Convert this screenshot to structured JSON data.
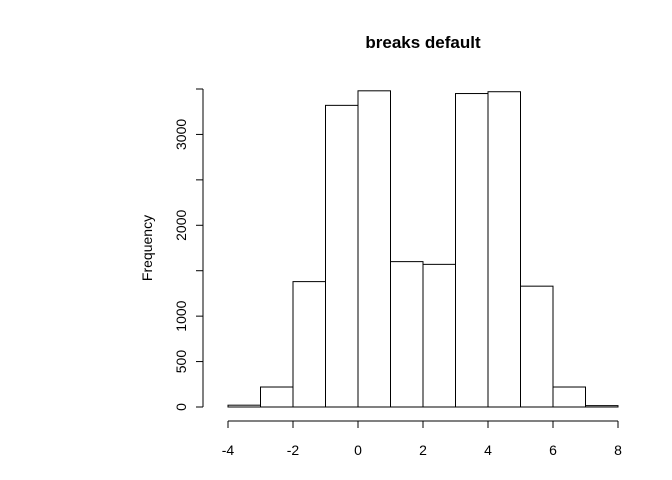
{
  "chart_data": {
    "type": "bar",
    "title": "breaks default",
    "xlabel": "",
    "ylabel": "Frequency",
    "bin_edges": [
      -4,
      -3,
      -2,
      -1,
      0,
      1,
      2,
      3,
      4,
      5,
      6,
      7,
      8
    ],
    "values": [
      20,
      220,
      1380,
      3320,
      3480,
      1600,
      1570,
      3450,
      3470,
      1330,
      220,
      15
    ],
    "xlim": [
      -4,
      8
    ],
    "ylim": [
      0,
      3500
    ],
    "x_ticks": [
      -4,
      -2,
      0,
      2,
      4,
      6,
      8
    ],
    "x_tick_labels": [
      "-4",
      "-2",
      "0",
      "2",
      "4",
      "6",
      "8"
    ],
    "y_ticks": [
      0,
      500,
      1000,
      1500,
      2000,
      2500,
      3000,
      3500
    ],
    "y_tick_labels": [
      "0",
      "500",
      "1000",
      "",
      "2000",
      "",
      "3000",
      ""
    ],
    "grid": false,
    "fill_color": "#ffffff",
    "stroke_color": "#000000"
  }
}
